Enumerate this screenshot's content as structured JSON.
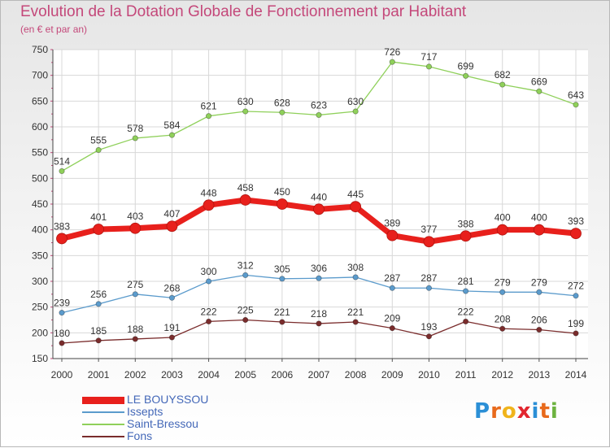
{
  "header": {
    "title": "Evolution de la Dotation Globale de Fonctionnement par Habitant",
    "subtitle": "(en € et par an)"
  },
  "logo": {
    "text": "Proxiti",
    "colors": [
      "#2b8fd6",
      "#e86a1c",
      "#f0b41c",
      "#e2262f",
      "#2b8fd6",
      "#e86a1c",
      "#6db33f"
    ]
  },
  "chart_data": {
    "type": "line",
    "title": "Evolution de la Dotation Globale de Fonctionnement par Habitant",
    "subtitle": "(en € et par an)",
    "xlabel": "",
    "ylabel": "",
    "x": [
      "2000",
      "2001",
      "2002",
      "2003",
      "2004",
      "2005",
      "2006",
      "2007",
      "2008",
      "2009",
      "2010",
      "2011",
      "2012",
      "2013",
      "2014"
    ],
    "ylim": [
      150,
      750
    ],
    "yticks": [
      150,
      200,
      250,
      300,
      350,
      400,
      450,
      500,
      550,
      600,
      650,
      700,
      750
    ],
    "grid": true,
    "legend_position": "bottom-left",
    "series": [
      {
        "name": "LE BOUYSSOU",
        "color": "#e8201c",
        "emphasis": true,
        "values": [
          383,
          401,
          403,
          407,
          448,
          458,
          450,
          440,
          445,
          389,
          377,
          388,
          400,
          400,
          393
        ]
      },
      {
        "name": "Issepts",
        "color": "#5b9bcc",
        "emphasis": false,
        "values": [
          239,
          256,
          275,
          268,
          300,
          312,
          305,
          306,
          308,
          287,
          287,
          281,
          279,
          279,
          272
        ]
      },
      {
        "name": "Saint-Bressou",
        "color": "#8fd05a",
        "emphasis": false,
        "values": [
          514,
          555,
          578,
          584,
          621,
          630,
          628,
          623,
          630,
          726,
          717,
          699,
          682,
          669,
          643
        ]
      },
      {
        "name": "Fons",
        "color": "#7a2c2c",
        "emphasis": false,
        "values": [
          180,
          185,
          188,
          191,
          222,
          225,
          221,
          218,
          221,
          209,
          193,
          222,
          208,
          206,
          199
        ]
      }
    ]
  }
}
